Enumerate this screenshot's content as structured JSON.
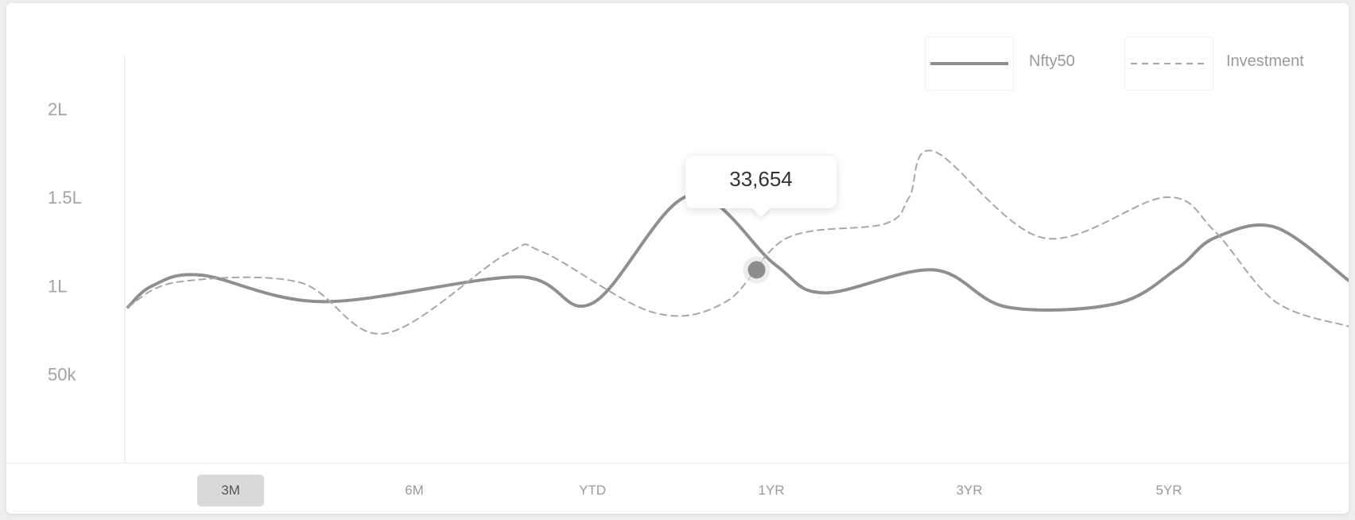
{
  "legend": {
    "series1": "Nfty50",
    "series2": "Investment"
  },
  "tooltip": {
    "value": "33,654"
  },
  "ranges": [
    "3M",
    "6M",
    "YTD",
    "1YR",
    "3YR",
    "5YR"
  ],
  "active_range": "3M",
  "colors": {
    "line": "#8f8f8f",
    "dashed": "#a8a8a8",
    "marker": "#8c8c8c",
    "active_tab_bg": "#d9d9d9"
  },
  "chart_data": {
    "type": "line",
    "title": "",
    "xlabel": "",
    "ylabel": "",
    "y_ticks": [
      {
        "label": "2L",
        "value": 200000
      },
      {
        "label": "1.5L",
        "value": 150000
      },
      {
        "label": "1L",
        "value": 100000
      },
      {
        "label": "50k",
        "value": 50000
      }
    ],
    "ylim": [
      0,
      230000
    ],
    "grid": false,
    "legend_position": "top-right",
    "series": [
      {
        "name": "Nfty50",
        "style": "solid",
        "x": [
          0,
          0.02,
          0.06,
          0.16,
          0.32,
          0.38,
          0.46,
          0.53,
          0.57,
          0.66,
          0.72,
          0.81,
          0.86,
          0.89,
          0.94,
          1.0
        ],
        "values": [
          88000,
          100000,
          106000,
          91000,
          105000,
          90000,
          151000,
          112000,
          96000,
          109000,
          88000,
          90000,
          110000,
          127000,
          133000,
          103000
        ]
      },
      {
        "name": "Investment",
        "style": "dashed",
        "x": [
          0,
          0.04,
          0.14,
          0.21,
          0.31,
          0.34,
          0.43,
          0.49,
          0.54,
          0.62,
          0.64,
          0.66,
          0.75,
          0.85,
          0.89,
          0.94,
          1.0
        ],
        "values": [
          88000,
          102000,
          102000,
          73000,
          118000,
          119000,
          85000,
          91000,
          127000,
          135000,
          150000,
          176000,
          127000,
          150000,
          131000,
          91000,
          77000
        ]
      }
    ],
    "highlight": {
      "series": "Investment",
      "x": 0.515,
      "label": "33,654"
    }
  }
}
